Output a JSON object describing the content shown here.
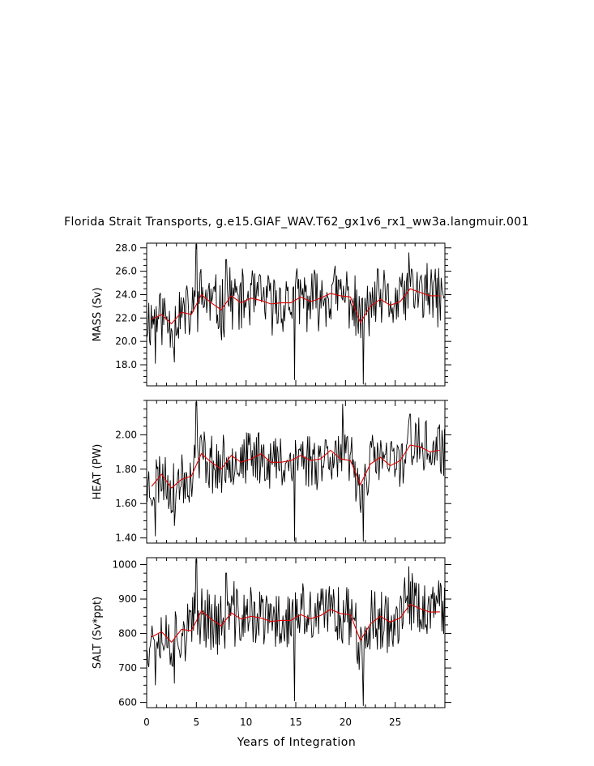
{
  "chart_data": {
    "type": "line",
    "title": "Florida Strait Transports, g.e15.GIAF_WAV.T62_gx1v6_rx1_ww3a.langmuir.001",
    "xlabel": "Years of Integration",
    "xlim": [
      0,
      30
    ],
    "xticks": [
      0,
      5,
      10,
      15,
      20,
      25
    ],
    "panels": [
      {
        "ylabel": "MASS (Sv)",
        "ylim": [
          16.2,
          28.4
        ],
        "yticks": [
          18.0,
          20.0,
          22.0,
          24.0,
          26.0,
          28.0
        ],
        "ytick_labels": [
          "18.0",
          "20.0",
          "22.0",
          "24.0",
          "26.0",
          "28.0"
        ],
        "monthly_mean": 23.1,
        "monthly_amp": 1.55,
        "monthly_seed": 11,
        "spikes": [
          [
            5.0,
            28.3
          ],
          [
            14.9,
            16.7
          ],
          [
            21.8,
            16.3
          ],
          [
            26.4,
            27.6
          ],
          [
            8.0,
            27.0
          ],
          [
            23.2,
            26.2
          ],
          [
            0.9,
            18.1
          ],
          [
            2.8,
            18.2
          ]
        ],
        "annual_x": [
          0.5,
          1.5,
          2.5,
          3.5,
          4.5,
          5.5,
          6.5,
          7.5,
          8.5,
          9.5,
          10.5,
          11.5,
          12.5,
          13.5,
          14.5,
          15.5,
          16.5,
          17.5,
          18.5,
          19.5,
          20.5,
          21.5,
          22.5,
          23.5,
          24.5,
          25.5,
          26.5,
          27.5,
          28.5,
          29.5
        ],
        "annual_y": [
          21.9,
          22.3,
          21.5,
          22.5,
          22.3,
          24.0,
          23.3,
          22.7,
          23.9,
          23.3,
          23.7,
          23.5,
          23.2,
          23.3,
          23.3,
          23.8,
          23.4,
          23.7,
          24.1,
          23.9,
          23.8,
          21.6,
          23.0,
          23.6,
          23.1,
          23.4,
          24.5,
          24.2,
          23.9,
          23.9
        ]
      },
      {
        "ylabel": "HEAT (PW)",
        "ylim": [
          1.37,
          2.2
        ],
        "yticks": [
          1.4,
          1.6,
          1.8,
          2.0
        ],
        "ytick_labels": [
          "1.40",
          "1.60",
          "1.80",
          "2.00"
        ],
        "monthly_mean": 1.83,
        "monthly_amp": 0.1,
        "monthly_seed": 23,
        "spikes": [
          [
            5.0,
            2.19
          ],
          [
            14.9,
            1.38
          ],
          [
            21.8,
            1.37
          ],
          [
            19.7,
            2.18
          ],
          [
            26.5,
            2.12
          ],
          [
            0.9,
            1.41
          ],
          [
            2.8,
            1.47
          ]
        ],
        "annual_x": [
          0.5,
          1.5,
          2.5,
          3.5,
          4.5,
          5.5,
          6.5,
          7.5,
          8.5,
          9.5,
          10.5,
          11.5,
          12.5,
          13.5,
          14.5,
          15.5,
          16.5,
          17.5,
          18.5,
          19.5,
          20.5,
          21.5,
          22.5,
          23.5,
          24.5,
          25.5,
          26.5,
          27.5,
          28.5,
          29.5
        ],
        "annual_y": [
          1.7,
          1.77,
          1.69,
          1.74,
          1.76,
          1.89,
          1.84,
          1.8,
          1.88,
          1.84,
          1.86,
          1.89,
          1.84,
          1.84,
          1.85,
          1.88,
          1.85,
          1.86,
          1.91,
          1.86,
          1.85,
          1.71,
          1.83,
          1.87,
          1.82,
          1.85,
          1.94,
          1.93,
          1.9,
          1.91
        ]
      },
      {
        "ylabel": "SALT (Sv*ppt)",
        "ylim": [
          585,
          1020
        ],
        "yticks": [
          600,
          700,
          800,
          900,
          1000
        ],
        "ytick_labels": [
          "600",
          "700",
          "800",
          "900",
          "1000"
        ],
        "monthly_mean": 830,
        "monthly_amp": 55,
        "monthly_seed": 37,
        "spikes": [
          [
            5.0,
            1015
          ],
          [
            14.9,
            604
          ],
          [
            21.8,
            590
          ],
          [
            26.4,
            995
          ],
          [
            8.0,
            975
          ],
          [
            0.9,
            650
          ],
          [
            2.8,
            655
          ]
        ],
        "annual_x": [
          0.5,
          1.5,
          2.5,
          3.5,
          4.5,
          5.5,
          6.5,
          7.5,
          8.5,
          9.5,
          10.5,
          11.5,
          12.5,
          13.5,
          14.5,
          15.5,
          16.5,
          17.5,
          18.5,
          19.5,
          20.5,
          21.5,
          22.5,
          23.5,
          24.5,
          25.5,
          26.5,
          27.5,
          28.5,
          29.5
        ],
        "annual_y": [
          790,
          805,
          775,
          812,
          808,
          865,
          842,
          822,
          860,
          842,
          850,
          845,
          835,
          838,
          838,
          855,
          843,
          852,
          870,
          858,
          855,
          780,
          828,
          850,
          833,
          845,
          885,
          872,
          862,
          863
        ]
      }
    ],
    "series_colors": {
      "monthly": "#000000",
      "annual": "#e00000"
    }
  }
}
